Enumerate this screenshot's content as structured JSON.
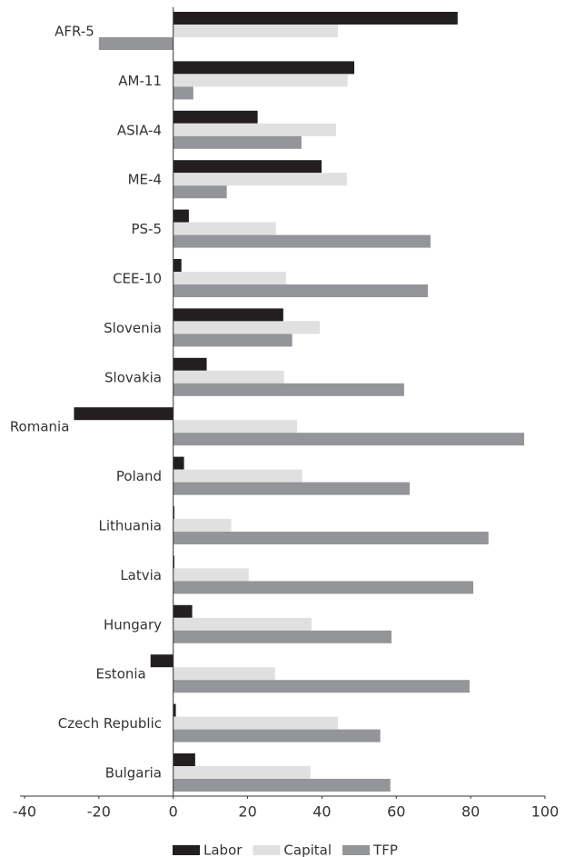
{
  "chart_data": {
    "type": "bar",
    "orientation": "horizontal",
    "categories": [
      "AFR-5",
      "AM-11",
      "ASIA-4",
      "ME-4",
      "PS-5",
      "CEE-10",
      "Slovenia",
      "Slovakia",
      "Romania",
      "Poland",
      "Lithuania",
      "Latvia",
      "Hungary",
      "Estonia",
      "Czech Republic",
      "Bulgaria"
    ],
    "series": [
      {
        "name": "Labor",
        "color": "#231f20",
        "values": [
          76.5,
          48.7,
          22.7,
          39.9,
          4.2,
          2.2,
          29.6,
          9.0,
          -26.7,
          2.9,
          0.3,
          0.3,
          5.1,
          -6.1,
          0.7,
          5.9
        ]
      },
      {
        "name": "Capital",
        "color": "#e0e0e0",
        "values": [
          44.3,
          46.9,
          43.8,
          46.7,
          27.6,
          30.3,
          39.4,
          29.8,
          33.3,
          34.7,
          15.6,
          20.3,
          37.2,
          27.4,
          44.3,
          36.9
        ]
      },
      {
        "name": "TFP",
        "color": "#939598",
        "values": [
          -20.0,
          5.4,
          34.5,
          14.4,
          69.2,
          68.5,
          32.0,
          62.1,
          94.4,
          63.6,
          84.8,
          80.7,
          58.7,
          79.7,
          55.7,
          58.4
        ]
      }
    ],
    "xlim": [
      -40,
      100
    ],
    "xticks": [
      -40,
      -20,
      0,
      20,
      40,
      60,
      80,
      100
    ],
    "legend": "bottom"
  }
}
